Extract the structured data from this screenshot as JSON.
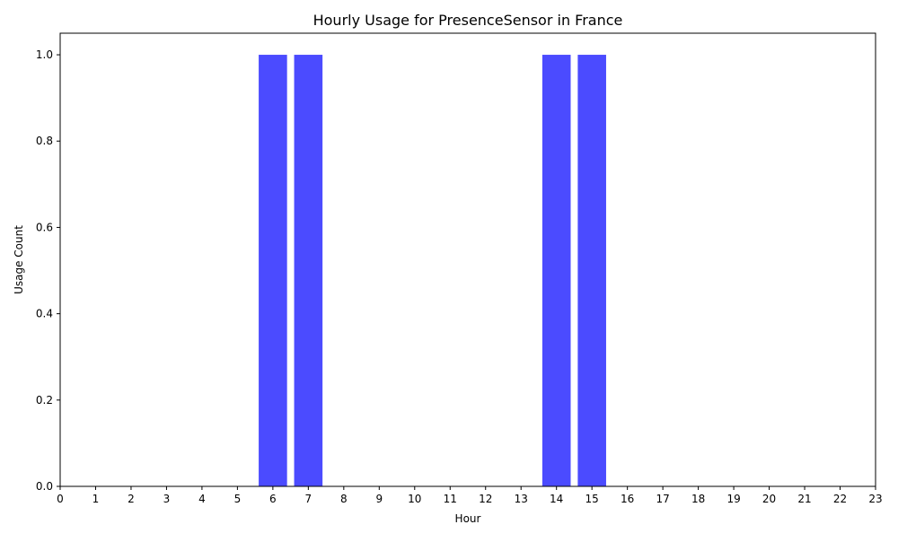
{
  "chart_data": {
    "type": "bar",
    "title": "Hourly Usage for PresenceSensor in France",
    "xlabel": "Hour",
    "ylabel": "Usage Count",
    "categories": [
      "0",
      "1",
      "2",
      "3",
      "4",
      "5",
      "6",
      "7",
      "8",
      "9",
      "10",
      "11",
      "12",
      "13",
      "14",
      "15",
      "16",
      "17",
      "18",
      "19",
      "20",
      "21",
      "22",
      "23"
    ],
    "values": [
      0,
      0,
      0,
      0,
      0,
      0,
      1,
      1,
      0,
      0,
      0,
      0,
      0,
      0,
      1,
      1,
      0,
      0,
      0,
      0,
      0,
      0,
      0,
      0
    ],
    "xlim": [
      0,
      23
    ],
    "ylim": [
      0,
      1.05
    ],
    "yticks": [
      "0.0",
      "0.2",
      "0.4",
      "0.6",
      "0.8",
      "1.0"
    ],
    "bar_color": "#4b4bff",
    "grid": false,
    "legend": "none"
  }
}
